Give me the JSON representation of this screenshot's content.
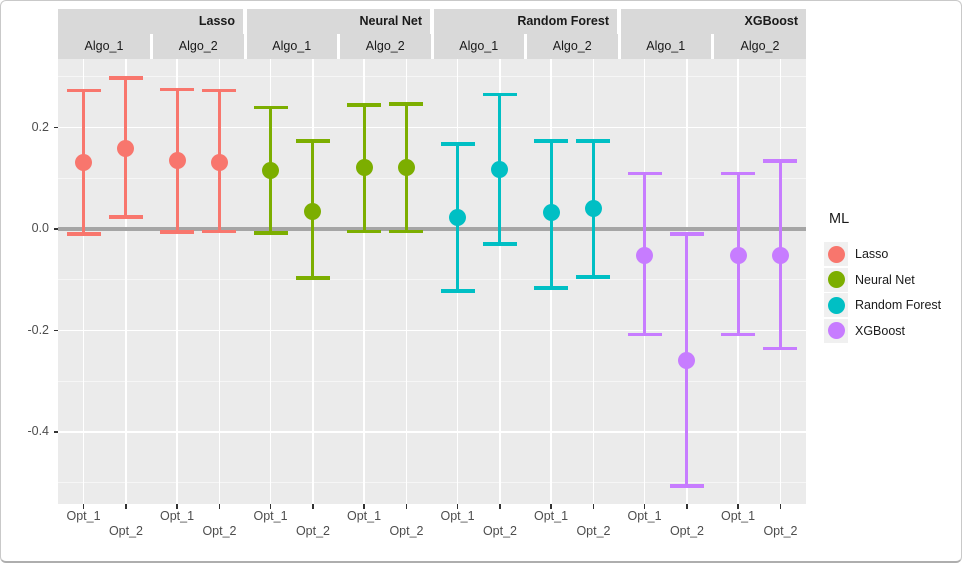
{
  "figure": {
    "legend": {
      "title": "ML",
      "entries": [
        {
          "label": "Lasso",
          "color": "#F8766D"
        },
        {
          "label": "Neural Net",
          "color": "#7CAE00"
        },
        {
          "label": "Random Forest",
          "color": "#00BFC4"
        },
        {
          "label": "XGBoost",
          "color": "#C77CFF"
        }
      ]
    }
  },
  "chart_data": {
    "type": "pointrange",
    "description": "Nested-facet point-range (interval) plot: outer facet ML model, inner facet Algo, x-axis Opt, y = estimate with interval; thick grey reference line at 0.",
    "facets_outer": [
      "Lasso",
      "Neural Net",
      "Random Forest",
      "XGBoost"
    ],
    "facets_inner": [
      "Algo_1",
      "Algo_2"
    ],
    "x_categories": [
      "Opt_1",
      "Opt_2"
    ],
    "legend_title": "ML",
    "y_axis": {
      "tick_labels": [
        "0.2",
        "0.0",
        "-0.2",
        "-0.4"
      ],
      "major_ticks": [
        0.2,
        0.0,
        -0.2,
        -0.4
      ],
      "minor_ticks": [
        0.3,
        0.1,
        -0.1,
        -0.3,
        -0.5
      ],
      "ylim": [
        -0.542,
        0.335
      ],
      "zero_line": 0.0
    },
    "grid": "on",
    "legend_position": "right",
    "series": [
      {
        "ml": "Lasso",
        "color": "#F8766D",
        "points": [
          {
            "algo": "Algo_1",
            "opt": "Opt_1",
            "mid": 0.131,
            "lo": -0.01,
            "hi": 0.273
          },
          {
            "algo": "Algo_1",
            "opt": "Opt_2",
            "mid": 0.159,
            "lo": 0.024,
            "hi": 0.298
          },
          {
            "algo": "Algo_2",
            "opt": "Opt_1",
            "mid": 0.134,
            "lo": -0.006,
            "hi": 0.275
          },
          {
            "algo": "Algo_2",
            "opt": "Opt_2",
            "mid": 0.132,
            "lo": -0.005,
            "hi": 0.273
          }
        ]
      },
      {
        "ml": "Neural Net",
        "color": "#7CAE00",
        "points": [
          {
            "algo": "Algo_1",
            "opt": "Opt_1",
            "mid": 0.116,
            "lo": -0.008,
            "hi": 0.239
          },
          {
            "algo": "Algo_1",
            "opt": "Opt_2",
            "mid": 0.035,
            "lo": -0.097,
            "hi": 0.173
          },
          {
            "algo": "Algo_2",
            "opt": "Opt_1",
            "mid": 0.121,
            "lo": -0.005,
            "hi": 0.244
          },
          {
            "algo": "Algo_2",
            "opt": "Opt_2",
            "mid": 0.122,
            "lo": -0.005,
            "hi": 0.246
          }
        ]
      },
      {
        "ml": "Random Forest",
        "color": "#00BFC4",
        "points": [
          {
            "algo": "Algo_1",
            "opt": "Opt_1",
            "mid": 0.022,
            "lo": -0.122,
            "hi": 0.167
          },
          {
            "algo": "Algo_1",
            "opt": "Opt_2",
            "mid": 0.118,
            "lo": -0.03,
            "hi": 0.265
          },
          {
            "algo": "Algo_2",
            "opt": "Opt_1",
            "mid": 0.032,
            "lo": -0.116,
            "hi": 0.173
          },
          {
            "algo": "Algo_2",
            "opt": "Opt_2",
            "mid": 0.04,
            "lo": -0.095,
            "hi": 0.173
          }
        ]
      },
      {
        "ml": "XGBoost",
        "color": "#C77CFF",
        "points": [
          {
            "algo": "Algo_1",
            "opt": "Opt_1",
            "mid": -0.052,
            "lo": -0.208,
            "hi": 0.109
          },
          {
            "algo": "Algo_1",
            "opt": "Opt_2",
            "mid": -0.259,
            "lo": -0.506,
            "hi": -0.01
          },
          {
            "algo": "Algo_2",
            "opt": "Opt_1",
            "mid": -0.052,
            "lo": -0.208,
            "hi": 0.109
          },
          {
            "algo": "Algo_2",
            "opt": "Opt_2",
            "mid": -0.052,
            "lo": -0.235,
            "hi": 0.134
          }
        ]
      }
    ],
    "colors": {
      "panel_bg": "#EBEBEB",
      "strip_bg": "#D9D9D9",
      "grid_major": "#FFFFFF",
      "grid_minor": "rgba(255,255,255,0.55)",
      "zero_line": "#A5A5A5",
      "axis_text": "#4d4d4d",
      "tick_mark": "#333333"
    }
  }
}
